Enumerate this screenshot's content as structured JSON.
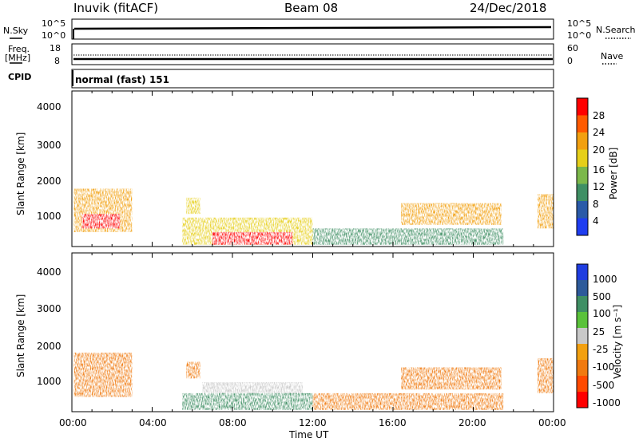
{
  "header": {
    "station": "Inuvik (fitACF)",
    "beam": "Beam 08",
    "date": "24/Dec/2018"
  },
  "panels": {
    "nsky": {
      "left_label": "N.Sky",
      "left_ticks": [
        "10^5",
        "10^0"
      ],
      "right_label": "N.Search",
      "right_ticks": [
        "10^5",
        "10^0"
      ]
    },
    "freq": {
      "left_label_1": "Freq.",
      "left_label_2": "[MHz]",
      "left_ticks": [
        "18",
        "8"
      ],
      "right_label": "Nave",
      "right_ticks": [
        "60",
        "0"
      ]
    },
    "cpid": {
      "label": "CPID",
      "value": "normal (fast) 151"
    }
  },
  "power_panel": {
    "ylabel": "Slant Range [km]",
    "yticks": [
      "4000",
      "3000",
      "2000",
      "1000"
    ]
  },
  "velocity_panel": {
    "ylabel": "Slant Range [km]",
    "yticks": [
      "4000",
      "3000",
      "2000",
      "1000"
    ]
  },
  "x_axis": {
    "label": "Time UT",
    "ticks": [
      "00:00",
      "04:00",
      "08:00",
      "12:00",
      "16:00",
      "20:00",
      "00:00"
    ]
  },
  "colorbars": {
    "power": {
      "label": "Power [dB]",
      "ticks": [
        "28",
        "24",
        "20",
        "16",
        "12",
        "8",
        "4"
      ],
      "colors": [
        "#ff0000",
        "#ff5a00",
        "#f2a010",
        "#e6cf1a",
        "#7cb84a",
        "#3f8f64",
        "#2a5aa8",
        "#1f3df0"
      ]
    },
    "velocity": {
      "label": "Velocity [m s⁻¹]",
      "ticks": [
        "1000",
        "500",
        "100",
        "25",
        "-25",
        "-100",
        "-500",
        "-1000"
      ],
      "colors": [
        "#1f3de0",
        "#2d5a9a",
        "#3f8f64",
        "#5ac23a",
        "#c8c8c8",
        "#f2a010",
        "#f07a10",
        "#ff4a00",
        "#ff0000"
      ]
    }
  },
  "chart_data": {
    "type": "heatmap",
    "x_range": [
      "00:00",
      "24:00"
    ],
    "y_range_km": [
      200,
      4500
    ],
    "power_regions": [
      {
        "t": [
          0.1,
          3.0
        ],
        "range": [
          600,
          1800
        ],
        "power_db": 22
      },
      {
        "t": [
          0.5,
          2.4
        ],
        "range": [
          700,
          1100
        ],
        "power_db": 28
      },
      {
        "t": [
          5.7,
          6.4
        ],
        "range": [
          1100,
          1550
        ],
        "power_db": 18
      },
      {
        "t": [
          5.5,
          12.0
        ],
        "range": [
          250,
          1000
        ],
        "power_db": 16
      },
      {
        "t": [
          7.0,
          11.0
        ],
        "range": [
          250,
          600
        ],
        "power_db": 28
      },
      {
        "t": [
          12.0,
          21.5
        ],
        "range": [
          250,
          700
        ],
        "power_db": 10
      },
      {
        "t": [
          16.4,
          21.4
        ],
        "range": [
          800,
          1400
        ],
        "power_db": 22
      },
      {
        "t": [
          23.2,
          24.0
        ],
        "range": [
          700,
          1650
        ],
        "power_db": 20
      }
    ],
    "velocity_regions": [
      {
        "t": [
          0.1,
          3.0
        ],
        "range": [
          600,
          1800
        ],
        "velocity_ms": -200
      },
      {
        "t": [
          5.7,
          6.4
        ],
        "range": [
          1100,
          1550
        ],
        "velocity_ms": -150
      },
      {
        "t": [
          6.5,
          11.5
        ],
        "range": [
          600,
          1000
        ],
        "velocity_ms": 0
      },
      {
        "t": [
          5.5,
          12.0
        ],
        "range": [
          250,
          700
        ],
        "velocity_ms": 150
      },
      {
        "t": [
          12.0,
          21.5
        ],
        "range": [
          250,
          700
        ],
        "velocity_ms": -120
      },
      {
        "t": [
          16.4,
          21.4
        ],
        "range": [
          800,
          1400
        ],
        "velocity_ms": -150
      },
      {
        "t": [
          23.2,
          24.0
        ],
        "range": [
          700,
          1650
        ],
        "velocity_ms": -200
      }
    ]
  }
}
